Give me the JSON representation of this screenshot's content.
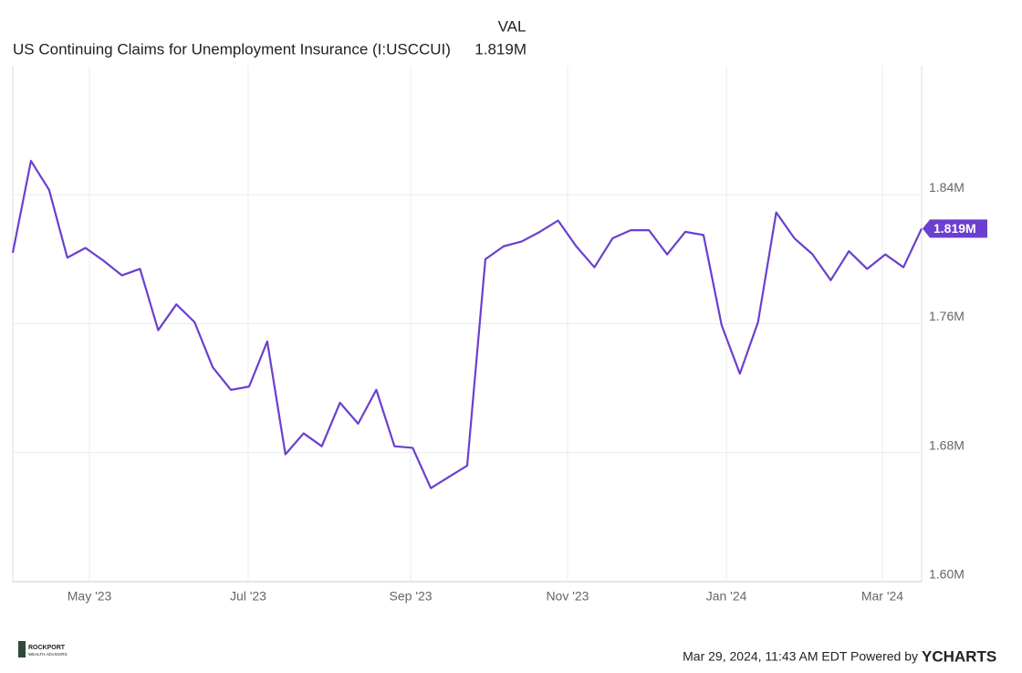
{
  "chart_data": {
    "type": "line",
    "header": "VAL",
    "latest": {
      "value": 1.819,
      "label": "1.819M"
    },
    "series": [
      {
        "name": "US Continuing Claims for Unemployment Insurance (I:USCCUI)",
        "color": "#6b3fcf",
        "values": [
          1.804,
          1.861,
          1.843,
          1.801,
          1.807,
          1.799,
          1.79,
          1.794,
          1.756,
          1.772,
          1.761,
          1.733,
          1.719,
          1.721,
          1.749,
          1.679,
          1.692,
          1.684,
          1.711,
          1.698,
          1.719,
          1.684,
          1.683,
          1.658,
          1.665,
          1.672,
          1.8,
          1.808,
          1.811,
          1.817,
          1.824,
          1.808,
          1.795,
          1.813,
          1.818,
          1.818,
          1.803,
          1.817,
          1.815,
          1.759,
          1.729,
          1.761,
          1.829,
          1.813,
          1.803,
          1.787,
          1.805,
          1.794,
          1.803,
          1.795,
          1.819
        ]
      }
    ],
    "xlim": [
      0,
      50
    ],
    "xticks": [
      {
        "value": 4.22,
        "label": "May '23"
      },
      {
        "value": 12.95,
        "label": "Jul '23"
      },
      {
        "value": 21.89,
        "label": "Sep '23"
      },
      {
        "value": 30.52,
        "label": "Nov '23"
      },
      {
        "value": 39.26,
        "label": "Jan '24"
      },
      {
        "value": 47.84,
        "label": "Mar '24"
      }
    ],
    "ylim": [
      1.6,
      1.92
    ],
    "yticks": [
      {
        "value": 1.6,
        "label": "1.60M"
      },
      {
        "value": 1.68,
        "label": "1.68M"
      },
      {
        "value": 1.76,
        "label": "1.76M"
      },
      {
        "value": 1.84,
        "label": "1.84M"
      }
    ],
    "grid": true
  },
  "footer": {
    "timestamp": "Mar 29, 2024, 11:43 AM EDT Powered by",
    "brand": "YCHARTS",
    "logo_name": "ROCKPORT",
    "logo_sub": "WEALTH ADVISORS"
  }
}
